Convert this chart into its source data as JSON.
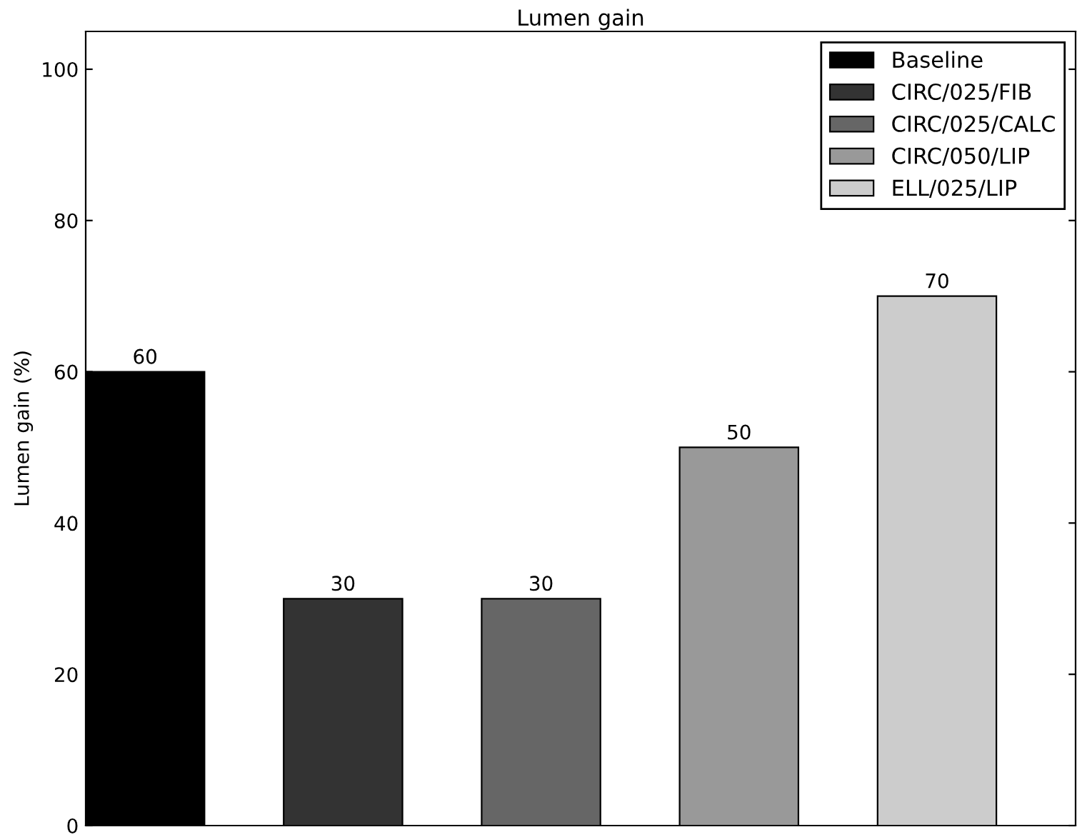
{
  "chart_data": {
    "type": "bar",
    "title": "Lumen gain",
    "ylabel": "Lumen gain (%)",
    "categories": [
      null,
      null,
      null,
      null,
      null
    ],
    "series": [
      {
        "name": "Baseline",
        "color": "#000000",
        "values": [
          60,
          null,
          null,
          null,
          null
        ]
      },
      {
        "name": "CIRC/025/FIB",
        "color": "#333333",
        "values": [
          null,
          30,
          null,
          null,
          null
        ]
      },
      {
        "name": "CIRC/025/CALC",
        "color": "#666666",
        "values": [
          null,
          null,
          30,
          null,
          null
        ]
      },
      {
        "name": "CIRC/050/LIP",
        "color": "#999999",
        "values": [
          null,
          null,
          null,
          50,
          null
        ]
      },
      {
        "name": "ELL/025/LIP",
        "color": "#cccccc",
        "values": [
          null,
          null,
          null,
          null,
          70
        ]
      }
    ],
    "ylim": [
      0,
      105
    ],
    "yticks": [
      0,
      20,
      40,
      60,
      80,
      100
    ],
    "data_labels": true,
    "legend": "top right",
    "grid": false
  }
}
